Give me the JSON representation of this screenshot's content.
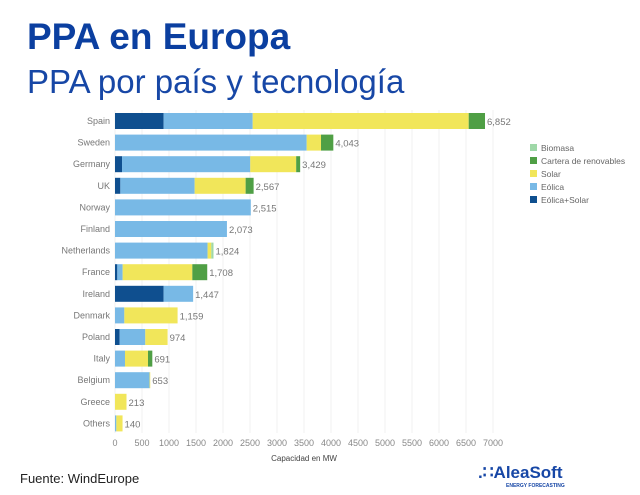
{
  "chart_data": {
    "type": "bar",
    "orientation": "horizontal",
    "stacked": true,
    "title": "PPA en Europa",
    "subtitle": "PPA por país y tecnología",
    "xlabel": "Capacidad en MW",
    "ylabel": "",
    "xlim": [
      0,
      7000
    ],
    "xticks": [
      0,
      500,
      1000,
      1500,
      2000,
      2500,
      3000,
      3500,
      4000,
      4500,
      5000,
      5500,
      6000,
      6500,
      7000
    ],
    "grid": true,
    "legend_position": "right",
    "categories": [
      "Spain",
      "Sweden",
      "Germany",
      "UK",
      "Norway",
      "Finland",
      "Netherlands",
      "France",
      "Ireland",
      "Denmark",
      "Poland",
      "Italy",
      "Belgium",
      "Greece",
      "Others"
    ],
    "totals": [
      "6,852",
      "4,043",
      "3,429",
      "2,567",
      "2,515",
      "2,073",
      "1,824",
      "1,708",
      "1,447",
      "1,159",
      "974",
      "691",
      "653",
      "213",
      "140"
    ],
    "series": [
      {
        "name": "Eólica+Solar",
        "color": "#0f4f8f",
        "values": [
          900,
          0,
          130,
          99,
          0,
          0,
          0,
          43,
          900,
          0,
          86,
          0,
          0,
          0,
          0
        ]
      },
      {
        "name": "Eólica",
        "color": "#78b9e6",
        "values": [
          1650,
          3550,
          2375,
          1376,
          2515,
          2073,
          1715,
          99,
          547,
          173,
          475,
          185,
          640,
          0,
          25
        ]
      },
      {
        "name": "Solar",
        "color": "#f1e65a",
        "values": [
          4000,
          265,
          850,
          944,
          0,
          0,
          68,
          1290,
          0,
          986,
          413,
          426,
          13,
          213,
          115
        ]
      },
      {
        "name": "Cartera de renovables",
        "color": "#4f9f45",
        "values": [
          302,
          228,
          74,
          148,
          0,
          0,
          0,
          276,
          0,
          0,
          0,
          80,
          0,
          0,
          0
        ]
      },
      {
        "name": "Biomasa",
        "color": "#9fd8a8",
        "values": [
          0,
          0,
          0,
          0,
          0,
          0,
          41,
          0,
          0,
          0,
          0,
          0,
          0,
          0,
          0
        ]
      }
    ],
    "legend_order": [
      "Biomasa",
      "Cartera de renovables",
      "Solar",
      "Eólica",
      "Eólica+Solar"
    ]
  },
  "footer": {
    "source": "Fuente: WindEurope",
    "logo": "AleaSoft",
    "logo_tagline": "ENERGY FORECASTING"
  }
}
